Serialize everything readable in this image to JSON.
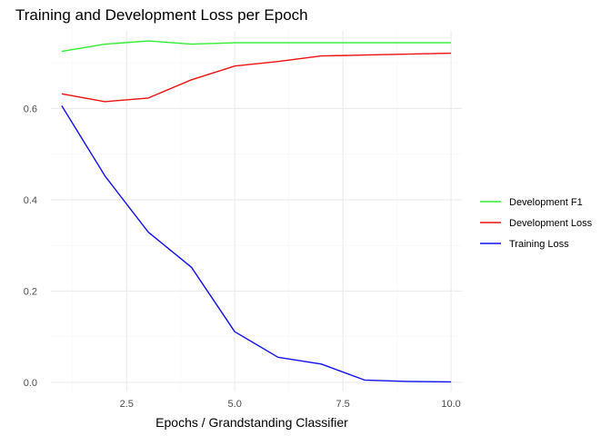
{
  "chart_data": {
    "type": "line",
    "title": "Training and Development Loss per Epoch",
    "xlabel": "Epochs / Grandstanding Classifier",
    "ylabel": "",
    "x": [
      1,
      2,
      3,
      4,
      5,
      6,
      7,
      8,
      9,
      10
    ],
    "xlim": [
      0.75,
      10.25
    ],
    "ylim": [
      -0.02,
      0.77
    ],
    "xticks": [
      2.5,
      5.0,
      7.5,
      10.0
    ],
    "xtick_labels": [
      "2.5",
      "5.0",
      "7.5",
      "10.0"
    ],
    "yticks": [
      0.0,
      0.2,
      0.4,
      0.6
    ],
    "ytick_labels": [
      "0.0",
      "0.2",
      "0.4",
      "0.6"
    ],
    "grid": true,
    "legend_position": "right",
    "series": [
      {
        "name": "Development F1",
        "color": "#33ee33",
        "values": [
          0.725,
          0.741,
          0.748,
          0.741,
          0.744,
          0.744,
          0.744,
          0.744,
          0.744,
          0.744
        ]
      },
      {
        "name": "Development Loss",
        "color": "#ee1111",
        "values": [
          0.632,
          0.615,
          0.623,
          0.663,
          0.693,
          0.703,
          0.715,
          0.717,
          0.719,
          0.721
        ]
      },
      {
        "name": "Training Loss",
        "color": "#1111ee",
        "values": [
          0.606,
          0.452,
          0.329,
          0.252,
          0.111,
          0.055,
          0.04,
          0.005,
          0.002,
          0.001
        ]
      }
    ]
  }
}
